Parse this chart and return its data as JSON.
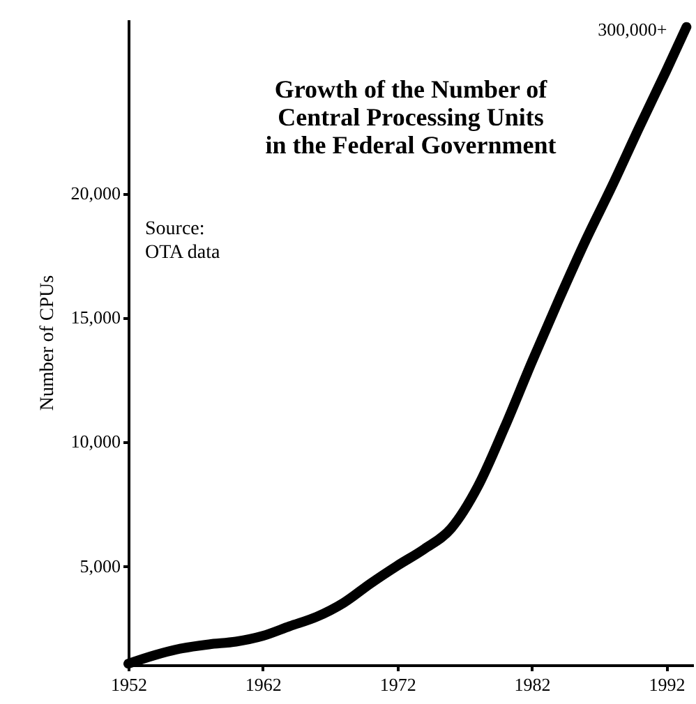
{
  "chart_data": {
    "type": "line",
    "title": "Growth of the Number of Central Processing Units in the Federal Government",
    "ylabel": "Number of CPUs",
    "annotations": [
      "Source:\nOTA data",
      {
        "text": "300,000+",
        "x": 1993.5,
        "y": 26700
      }
    ],
    "x": [
      1952,
      1954,
      1956,
      1958,
      1960,
      1962,
      1964,
      1966,
      1968,
      1970,
      1972,
      1974,
      1976,
      1978,
      1980,
      1982,
      1984,
      1986,
      1988,
      1990,
      1992,
      1993.5
    ],
    "series": [
      {
        "color": "#000000",
        "values": [
          1050,
          1400,
          1670,
          1830,
          1940,
          2170,
          2560,
          2940,
          3500,
          4280,
          5000,
          5670,
          6500,
          8200,
          10600,
          13200,
          15700,
          18100,
          20330,
          22670,
          24940,
          26700
        ]
      }
    ],
    "xlim": [
      1952,
      1994
    ],
    "xticks": [
      1952,
      1962,
      1972,
      1982,
      1992
    ],
    "ylim": [
      1000,
      27000
    ],
    "yticks": [
      {
        "value": 5000,
        "label": "5,000"
      },
      {
        "value": 10000,
        "label": "10,000"
      },
      {
        "value": 15000,
        "label": "15,000"
      },
      {
        "value": 20000,
        "label": "20,000"
      }
    ],
    "grid": false,
    "marker": "none",
    "line_style": "solid"
  }
}
